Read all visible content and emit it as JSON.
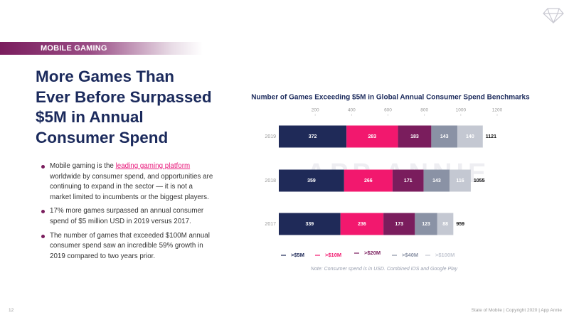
{
  "header": {
    "tag": "MOBILE GAMING"
  },
  "title_lines": [
    "More Games Than",
    "Ever Before Surpassed",
    "$5M in Annual",
    "Consumer Spend"
  ],
  "bullets": [
    {
      "before": "Mobile gaming is the ",
      "link": "leading gaming platform",
      "after": " worldwide by consumer spend, and opportunities are continuing to expand in the sector — it is not a market limited to incumbents or the biggest players."
    },
    {
      "text": "17% more games surpassed an annual consumer spend of $5 million USD in 2019 versus 2017."
    },
    {
      "text": "The number of games that exceeded $100M annual consumer spend saw an incredible 59% growth in 2019 compared to two years prior."
    }
  ],
  "watermark": "APP ANNIE",
  "footer": {
    "page": "12",
    "credit": "State of Mobile  |  Copyright 2020  |  App Annie"
  },
  "chart_data": {
    "type": "stacked-hbar",
    "title": "Number of Games Exceeding $5M in Global Annual Consumer Spend Benchmarks",
    "categories": [
      "2019",
      "2018",
      "2017"
    ],
    "series": [
      {
        "name": ">$5M",
        "color": "#1f2a58",
        "values": [
          372,
          359,
          339
        ]
      },
      {
        "name": ">$10M",
        "color": "#f2186e",
        "values": [
          283,
          266,
          236
        ]
      },
      {
        "name": ">$20M",
        "color": "#7a1d5d",
        "values": [
          183,
          171,
          173
        ]
      },
      {
        "name": ">$40M",
        "color": "#8a92a5",
        "values": [
          143,
          143,
          123
        ]
      },
      {
        "name": ">$100M",
        "color": "#c4c8d2",
        "values": [
          140,
          116,
          88
        ]
      }
    ],
    "totals": [
      1121,
      1055,
      959
    ],
    "xlim": [
      0,
      1200
    ],
    "xticks": [
      200,
      400,
      600,
      800,
      1000,
      1200
    ],
    "note": "Note: Consumer spend is in USD. Combined iOS and Google Play"
  }
}
